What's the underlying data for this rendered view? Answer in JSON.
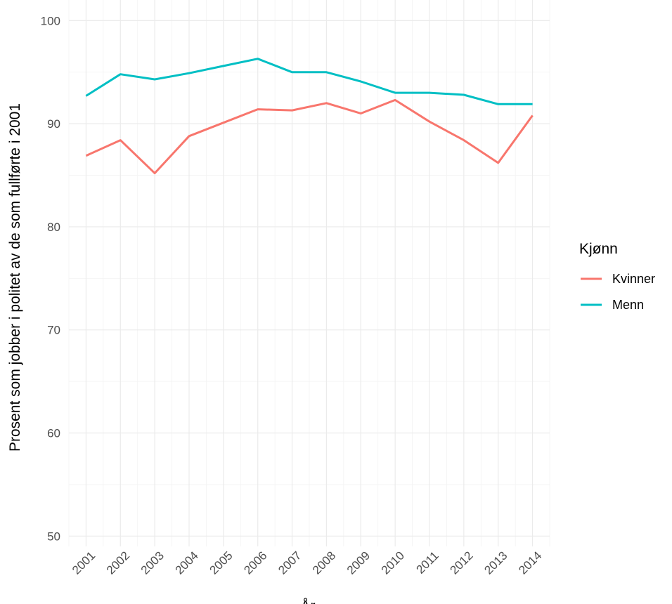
{
  "chart_data": {
    "type": "line",
    "title": "",
    "xlabel": "År",
    "ylabel": "Prosent som jobber i politet av de som fullførte i 2001",
    "x": [
      2001,
      2002,
      2003,
      2004,
      2005,
      2006,
      2007,
      2008,
      2009,
      2010,
      2011,
      2012,
      2013,
      2014
    ],
    "x_tick_labels": [
      "2001",
      "2002",
      "2003",
      "2004",
      "2005",
      "2006",
      "2007",
      "2008",
      "2009",
      "2010",
      "2011",
      "2012",
      "2013",
      "2014"
    ],
    "y_ticks": [
      50,
      60,
      70,
      80,
      90,
      100
    ],
    "y_tick_labels": [
      "50",
      "60",
      "70",
      "80",
      "90",
      "100"
    ],
    "ylim": [
      49,
      102
    ],
    "xlim": [
      2000.5,
      2014.5
    ],
    "grid": true,
    "legend": {
      "title": "Kjønn",
      "position": "right"
    },
    "series": [
      {
        "name": "Kvinner",
        "color": "#F8766D",
        "values": [
          86.9,
          88.4,
          85.2,
          88.8,
          90.1,
          91.4,
          91.3,
          92.0,
          91.0,
          92.3,
          90.2,
          88.4,
          86.2,
          90.8
        ]
      },
      {
        "name": "Menn",
        "color": "#00BFC4",
        "values": [
          92.7,
          94.8,
          94.3,
          94.9,
          95.6,
          96.3,
          95.0,
          95.0,
          94.1,
          93.0,
          93.0,
          92.8,
          91.9,
          91.9
        ]
      }
    ]
  }
}
